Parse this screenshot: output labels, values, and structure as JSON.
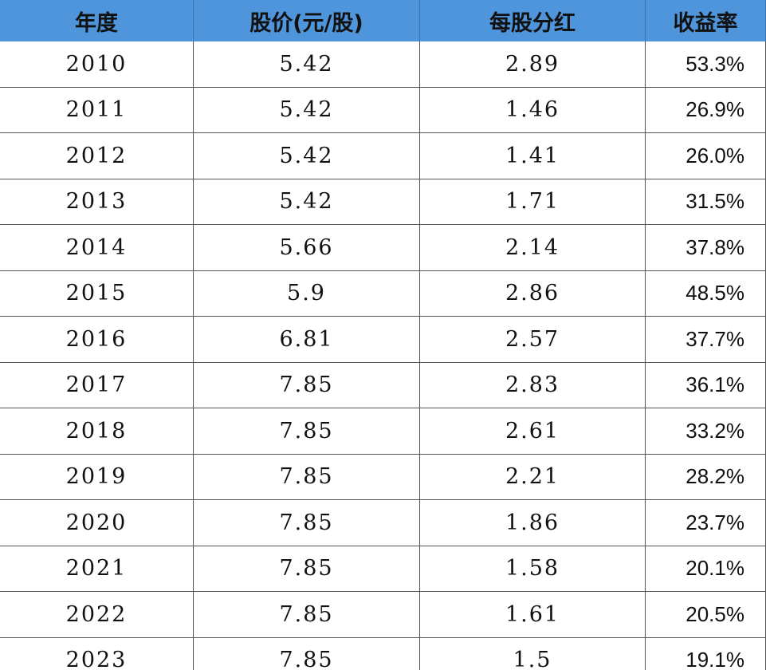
{
  "table": {
    "headers": [
      "年度",
      "股价(元/股)",
      "每股分红",
      "收益率"
    ],
    "rows": [
      [
        "2010",
        "5.42",
        "2.89",
        "53.3%"
      ],
      [
        "2011",
        "5.42",
        "1.46",
        "26.9%"
      ],
      [
        "2012",
        "5.42",
        "1.41",
        "26.0%"
      ],
      [
        "2013",
        "5.42",
        "1.71",
        "31.5%"
      ],
      [
        "2014",
        "5.66",
        "2.14",
        "37.8%"
      ],
      [
        "2015",
        "5.9",
        "2.86",
        "48.5%"
      ],
      [
        "2016",
        "6.81",
        "2.57",
        "37.7%"
      ],
      [
        "2017",
        "7.85",
        "2.83",
        "36.1%"
      ],
      [
        "2018",
        "7.85",
        "2.61",
        "33.2%"
      ],
      [
        "2019",
        "7.85",
        "2.21",
        "28.2%"
      ],
      [
        "2020",
        "7.85",
        "1.86",
        "23.7%"
      ],
      [
        "2021",
        "7.85",
        "1.58",
        "20.1%"
      ],
      [
        "2022",
        "7.85",
        "1.61",
        "20.5%"
      ],
      [
        "2023",
        "7.85",
        "1.5",
        "19.1%"
      ]
    ]
  }
}
